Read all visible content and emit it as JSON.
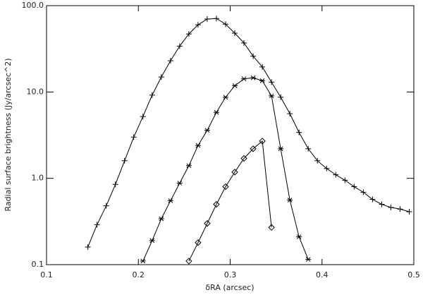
{
  "chart_data": {
    "type": "line",
    "xlabel": "δRA (arcsec)",
    "ylabel": "Radial surface brightness (Jy/arcsec^2)",
    "xlim": [
      0.1,
      0.5
    ],
    "xticks": [
      0.1,
      0.2,
      0.3,
      0.4,
      0.5
    ],
    "ylim": [
      0.1,
      100
    ],
    "yscale": "log",
    "yticks": [
      {
        "value": 0.1,
        "label": "0.1"
      },
      {
        "value": 1,
        "label": "1.0"
      },
      {
        "value": 10,
        "label": "10.0"
      },
      {
        "value": 100,
        "label": "100.0"
      }
    ],
    "series": [
      {
        "marker": "plus",
        "color": "#000000",
        "x": [
          0.145,
          0.155,
          0.165,
          0.175,
          0.185,
          0.195,
          0.205,
          0.215,
          0.225,
          0.235,
          0.245,
          0.255,
          0.265,
          0.275,
          0.285,
          0.295,
          0.305,
          0.315,
          0.325,
          0.335,
          0.345,
          0.355,
          0.365,
          0.375,
          0.385,
          0.395,
          0.405,
          0.415,
          0.425,
          0.435,
          0.445,
          0.455,
          0.465,
          0.475,
          0.485,
          0.495
        ],
        "values": [
          0.16,
          0.29,
          0.48,
          0.85,
          1.6,
          3.0,
          5.2,
          9.2,
          14.9,
          23,
          34,
          47,
          60,
          70,
          71,
          61,
          48,
          37,
          26,
          19.5,
          13,
          8.7,
          5.6,
          3.4,
          2.2,
          1.6,
          1.3,
          1.1,
          0.95,
          0.8,
          0.69,
          0.57,
          0.5,
          0.46,
          0.44,
          0.41
        ]
      },
      {
        "marker": "asterisk",
        "color": "#000000",
        "x": [
          0.205,
          0.215,
          0.225,
          0.235,
          0.245,
          0.255,
          0.265,
          0.275,
          0.285,
          0.295,
          0.305,
          0.315,
          0.325,
          0.335,
          0.345,
          0.355,
          0.365,
          0.375,
          0.385
        ],
        "values": [
          0.11,
          0.19,
          0.34,
          0.55,
          0.88,
          1.4,
          2.4,
          3.6,
          5.8,
          8.7,
          11.8,
          14.2,
          14.6,
          13.5,
          9,
          2.2,
          0.56,
          0.21,
          0.115
        ]
      },
      {
        "marker": "diamond",
        "color": "#000000",
        "x": [
          0.255,
          0.265,
          0.275,
          0.285,
          0.295,
          0.305,
          0.315,
          0.325,
          0.335,
          0.345
        ],
        "values": [
          0.11,
          0.18,
          0.3,
          0.5,
          0.8,
          1.18,
          1.7,
          2.2,
          2.7,
          0.27
        ]
      }
    ]
  }
}
